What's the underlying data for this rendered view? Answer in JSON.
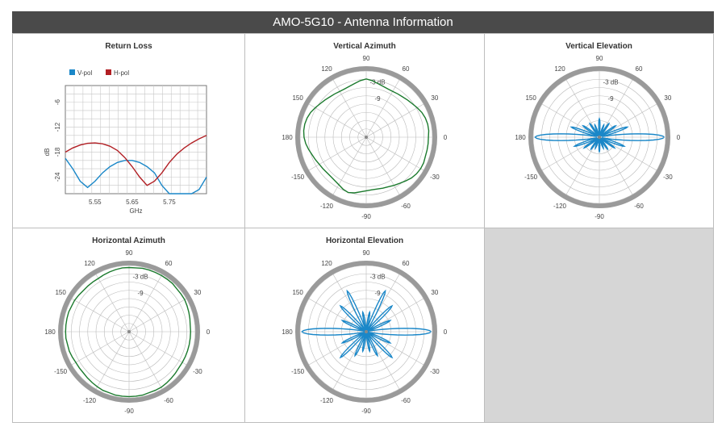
{
  "page": {
    "title": "AMO-5G10 - Antenna Information"
  },
  "colors": {
    "v_pol": "#1a87c8",
    "h_pol": "#b21f24",
    "azimuth_trace": "#1b7a2d",
    "elevation_trace": "#1a87c8",
    "header_bg": "#4a4a4a"
  },
  "chart_data": [
    {
      "type": "line",
      "title": "Return Loss",
      "xlabel": "GHz",
      "ylabel": "dB",
      "xlim": [
        5.47,
        5.85
      ],
      "ylim": [
        -28,
        -2
      ],
      "xticks": [
        5.55,
        5.65,
        5.75
      ],
      "xtick_labels": [
        "5.55",
        "5.65",
        "5.75"
      ],
      "yticks": [
        -6,
        -12,
        -18,
        -24
      ],
      "ytick_labels": [
        "-6",
        "-12",
        "-18",
        "-24"
      ],
      "grid": true,
      "legend": "top-left",
      "series": [
        {
          "name": "V-pol",
          "x": [
            5.47,
            5.49,
            5.51,
            5.53,
            5.55,
            5.57,
            5.59,
            5.61,
            5.63,
            5.65,
            5.67,
            5.69,
            5.71,
            5.73,
            5.75,
            5.77,
            5.79,
            5.81,
            5.83,
            5.85
          ],
          "y": [
            -19.5,
            -22,
            -25,
            -26.5,
            -25,
            -23,
            -21.5,
            -20.5,
            -20,
            -20,
            -20.5,
            -21.5,
            -23,
            -26,
            -28,
            -28,
            -28,
            -28,
            -27,
            -24
          ]
        },
        {
          "name": "H-pol",
          "x": [
            5.47,
            5.49,
            5.51,
            5.53,
            5.55,
            5.57,
            5.59,
            5.61,
            5.63,
            5.65,
            5.67,
            5.69,
            5.71,
            5.73,
            5.75,
            5.77,
            5.79,
            5.81,
            5.83,
            5.85
          ],
          "y": [
            -18,
            -17,
            -16.3,
            -15.9,
            -15.8,
            -16,
            -16.6,
            -17.6,
            -19.3,
            -21.5,
            -24,
            -26,
            -25,
            -23,
            -20.5,
            -18.5,
            -17,
            -15.8,
            -14.8,
            -14
          ]
        }
      ]
    },
    {
      "type": "polar",
      "title": "Vertical Azimuth",
      "rings_db": [
        -3,
        -9
      ],
      "ring_labels": [
        "-3 dB",
        "-9"
      ],
      "angle_labels": [
        "90",
        "60",
        "30",
        "0",
        "-30",
        "-60",
        "-90",
        "-120",
        "-150",
        "180",
        "150",
        "120"
      ],
      "series": [
        {
          "pattern": "azimuth",
          "r": [
            0.94,
            0.95,
            0.95,
            0.94,
            0.92,
            0.89,
            0.86,
            0.84,
            0.82,
            0.81,
            0.8,
            0.8,
            0.81,
            0.83,
            0.86,
            0.88,
            0.86,
            0.83,
            0.81,
            0.8,
            0.8,
            0.81,
            0.82,
            0.84,
            0.86,
            0.89,
            0.92,
            0.94,
            0.95,
            0.95,
            0.94,
            0.92,
            0.89,
            0.86,
            0.84,
            0.82,
            0.81,
            0.8,
            0.8,
            0.81,
            0.83,
            0.86,
            0.88,
            0.86,
            0.83,
            0.81,
            0.8,
            0.8,
            0.81,
            0.82,
            0.84,
            0.86,
            0.89,
            0.92,
            0.94,
            0.95,
            0.95,
            0.94,
            0.94,
            0.94
          ]
        }
      ]
    },
    {
      "type": "polar",
      "title": "Vertical Elevation",
      "rings_db": [
        -3,
        -9
      ],
      "ring_labels": [
        "-3 dB",
        "-9"
      ],
      "angle_labels": [
        "90",
        "60",
        "30",
        "0",
        "-30",
        "-60",
        "-90",
        "-120",
        "-150",
        "180",
        "150",
        "120"
      ],
      "series": [
        {
          "pattern": "elevation",
          "main_lobe_r": 0.98,
          "main_lobe_width_deg": 7,
          "side_lobes_deg": [
            20,
            35,
            55,
            70,
            90,
            110,
            125,
            145,
            160,
            200,
            215,
            235,
            250,
            270,
            290,
            305,
            325,
            340
          ],
          "side_lobe_r": [
            0.45,
            0.3,
            0.25,
            0.2,
            0.28,
            0.2,
            0.25,
            0.3,
            0.45,
            0.4,
            0.28,
            0.22,
            0.18,
            0.22,
            0.18,
            0.22,
            0.28,
            0.4
          ]
        }
      ]
    },
    {
      "type": "polar",
      "title": "Horizontal Azimuth",
      "rings_db": [
        -3,
        -9
      ],
      "ring_labels": [
        "-3 dB",
        "-9"
      ],
      "angle_labels": [
        "90",
        "60",
        "30",
        "0",
        "-30",
        "-60",
        "-90",
        "-120",
        "-150",
        "180",
        "150",
        "120"
      ],
      "series": [
        {
          "pattern": "azimuth",
          "r": [
            0.93,
            0.93,
            0.94,
            0.95,
            0.96,
            0.97,
            0.97,
            0.97,
            0.98,
            0.98,
            0.98,
            0.98,
            0.98,
            0.98,
            0.97,
            0.97,
            0.97,
            0.96,
            0.95,
            0.94,
            0.93,
            0.93,
            0.93,
            0.93,
            0.94,
            0.95,
            0.95,
            0.96,
            0.96,
            0.96,
            0.96,
            0.96,
            0.95,
            0.95,
            0.94,
            0.93,
            0.93,
            0.93,
            0.94,
            0.95,
            0.96,
            0.97,
            0.97,
            0.98,
            0.98,
            0.98,
            0.98,
            0.98,
            0.97,
            0.97,
            0.97,
            0.96,
            0.95,
            0.94,
            0.93,
            0.93,
            0.93,
            0.93,
            0.93,
            0.93
          ]
        }
      ]
    },
    {
      "type": "polar",
      "title": "Horizontal Elevation",
      "rings_db": [
        -3,
        -9
      ],
      "ring_labels": [
        "-3 dB",
        "-9"
      ],
      "angle_labels": [
        "90",
        "60",
        "30",
        "0",
        "-30",
        "-60",
        "-90",
        "-120",
        "-150",
        "180",
        "150",
        "120"
      ],
      "series": [
        {
          "pattern": "elevation",
          "main_lobe_r": 0.98,
          "main_lobe_width_deg": 7,
          "side_lobes_deg": [
            25,
            45,
            65,
            80,
            100,
            115,
            135,
            155,
            205,
            225,
            245,
            260,
            280,
            295,
            315,
            335
          ],
          "side_lobe_r": [
            0.4,
            0.55,
            0.68,
            0.3,
            0.3,
            0.68,
            0.55,
            0.4,
            0.4,
            0.55,
            0.4,
            0.3,
            0.3,
            0.4,
            0.55,
            0.4
          ]
        }
      ]
    }
  ]
}
